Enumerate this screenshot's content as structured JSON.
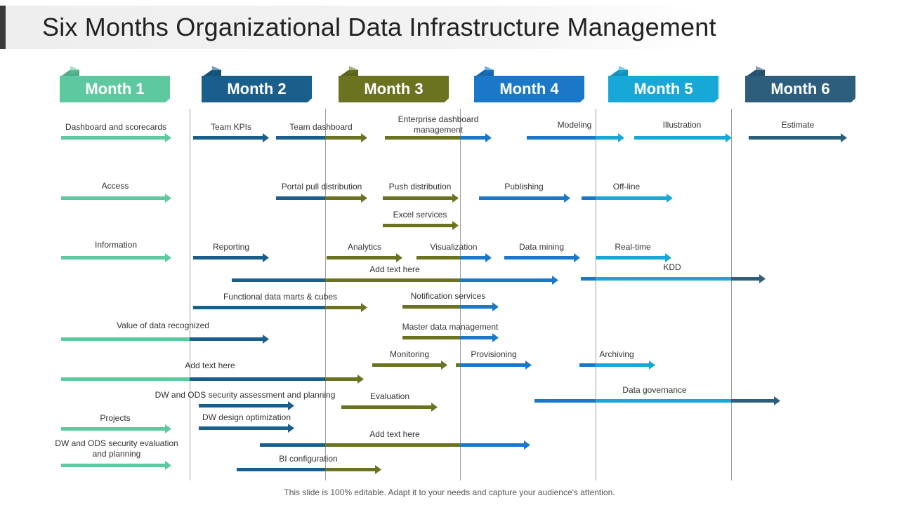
{
  "title": "Six Months Organizational Data Infrastructure Management",
  "footer": "This slide is 100% editable. Adapt it to your needs and capture your audience's attention.",
  "colors": {
    "m1": "#5ec99e",
    "m2": "#1a5e8c",
    "m3": "#6b7321",
    "m4": "#1b78c8",
    "m5": "#18a8d8",
    "m6": "#2d5f7d"
  },
  "months": [
    {
      "label": "Month 1"
    },
    {
      "label": "Month 2"
    },
    {
      "label": "Month 3"
    },
    {
      "label": "Month 4"
    },
    {
      "label": "Month 5"
    },
    {
      "label": "Month 6"
    }
  ],
  "tasks": [
    {
      "label": "Dashboard and scorecards"
    },
    {
      "label": "Team KPIs"
    },
    {
      "label": "Team dashboard"
    },
    {
      "label": "Enterprise dashboard\nmanagement"
    },
    {
      "label": "Modeling"
    },
    {
      "label": "Illustration"
    },
    {
      "label": "Estimate"
    },
    {
      "label": "Access"
    },
    {
      "label": "Portal pull distribution"
    },
    {
      "label": "Push distribution"
    },
    {
      "label": "Publishing"
    },
    {
      "label": "Off-line"
    },
    {
      "label": "Excel services"
    },
    {
      "label": "Information"
    },
    {
      "label": "Reporting"
    },
    {
      "label": "Analytics"
    },
    {
      "label": "Visualization"
    },
    {
      "label": "Data mining"
    },
    {
      "label": "Real-time"
    },
    {
      "label": "Add text here"
    },
    {
      "label": "KDD"
    },
    {
      "label": "Functional data marts & cubes"
    },
    {
      "label": "Notification services"
    },
    {
      "label": "Value of data recognized"
    },
    {
      "label": "Master data management"
    },
    {
      "label": "Monitoring"
    },
    {
      "label": "Provisioning"
    },
    {
      "label": "Archiving"
    },
    {
      "label": "Add text here"
    },
    {
      "label": "Data governance"
    },
    {
      "label": "DW and ODS security assessment and planning"
    },
    {
      "label": "Evaluation"
    },
    {
      "label": "Projects"
    },
    {
      "label": "DW design optimization"
    },
    {
      "label": "DW and ODS security evaluation\nand planning"
    },
    {
      "label": "Add text here"
    },
    {
      "label": "BI configuration"
    }
  ]
}
